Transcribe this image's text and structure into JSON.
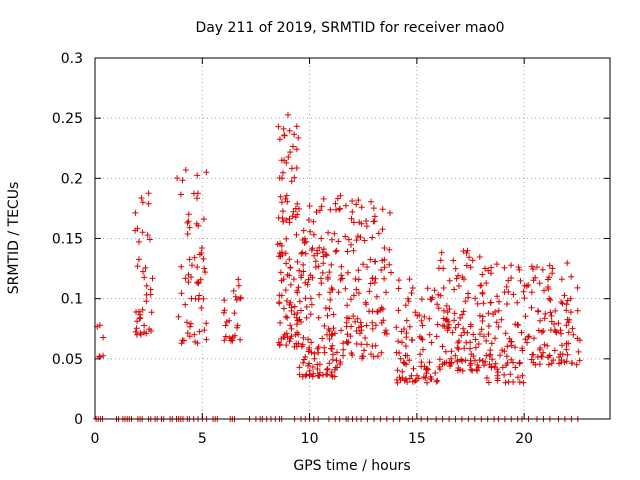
{
  "chart_data": {
    "type": "scatter",
    "title": "Day 211 of 2019, SRMTID for receiver mao0",
    "xlabel": "GPS time / hours",
    "ylabel": "SRMTID / TECUs",
    "xlim": [
      0,
      24
    ],
    "ylim": [
      0,
      0.3
    ],
    "xticks": [
      "0",
      "5",
      "10",
      "15",
      "20"
    ],
    "xtick_values": [
      0,
      5,
      10,
      15,
      20
    ],
    "yticks": [
      "0",
      "0.05",
      "0.1",
      "0.15",
      "0.2",
      "0.25",
      "0.3"
    ],
    "ytick_values": [
      0,
      0.05,
      0.1,
      0.15,
      0.2,
      0.25,
      0.3
    ],
    "grid": true,
    "marker": "+",
    "color": "#dd0000",
    "series": [
      {
        "name": "SRMTID",
        "clusters": [
          {
            "x": [
              0.1,
              0.4
            ],
            "y": [
              0.048,
              0.093
            ],
            "n": 6
          },
          {
            "x": [
              1.8,
              2.7
            ],
            "y": [
              0.07,
              0.188
            ],
            "n": 40
          },
          {
            "x": [
              3.8,
              5.2
            ],
            "y": [
              0.063,
              0.213
            ],
            "n": 60
          },
          {
            "x": [
              6.0,
              6.8
            ],
            "y": [
              0.065,
              0.118
            ],
            "n": 25
          },
          {
            "x": [
              8.5,
              9.5
            ],
            "y": [
              0.06,
              0.265
            ],
            "n": 110
          },
          {
            "x": [
              9.5,
              11.5
            ],
            "y": [
              0.035,
              0.188
            ],
            "n": 160
          },
          {
            "x": [
              11.5,
              13.8
            ],
            "y": [
              0.05,
              0.183
            ],
            "n": 120
          },
          {
            "x": [
              14.0,
              16.0
            ],
            "y": [
              0.03,
              0.118
            ],
            "n": 90
          },
          {
            "x": [
              16.0,
              18.0
            ],
            "y": [
              0.04,
              0.14
            ],
            "n": 110
          },
          {
            "x": [
              18.0,
              20.0
            ],
            "y": [
              0.03,
              0.133
            ],
            "n": 100
          },
          {
            "x": [
              20.0,
              22.6
            ],
            "y": [
              0.045,
              0.13
            ],
            "n": 110
          }
        ],
        "zero_points": [
          0.05,
          0.15,
          0.25,
          0.35,
          1.0,
          1.1,
          1.3,
          1.4,
          1.5,
          1.6,
          1.7,
          2.0,
          2.1,
          2.2,
          2.5,
          2.6,
          2.8,
          2.9,
          3.1,
          3.2,
          3.5,
          3.6,
          3.8,
          3.9,
          4.0,
          4.1,
          4.3,
          4.4,
          4.6,
          4.8,
          5.0,
          5.2,
          5.5,
          5.6,
          5.7,
          6.3,
          6.4,
          6.5,
          7.2,
          7.5,
          7.7,
          7.8,
          8.0,
          8.2,
          8.4,
          8.6,
          8.7,
          9.3,
          9.6,
          9.8,
          10.0,
          10.2,
          10.4,
          10.9,
          11.2,
          11.4,
          11.7,
          11.8,
          12.0,
          12.2,
          12.4,
          12.7,
          13.0,
          13.3,
          13.6,
          13.9,
          14.2,
          14.6,
          14.8,
          15.2,
          15.5,
          15.9,
          16.2,
          16.5,
          16.8,
          17.1,
          17.4,
          17.7,
          18.0,
          18.3,
          18.6,
          18.8,
          19.1,
          19.4,
          19.7,
          19.9,
          20.2,
          20.6,
          20.9,
          21.2,
          21.6,
          21.9,
          22.2,
          22.5
        ]
      }
    ]
  }
}
